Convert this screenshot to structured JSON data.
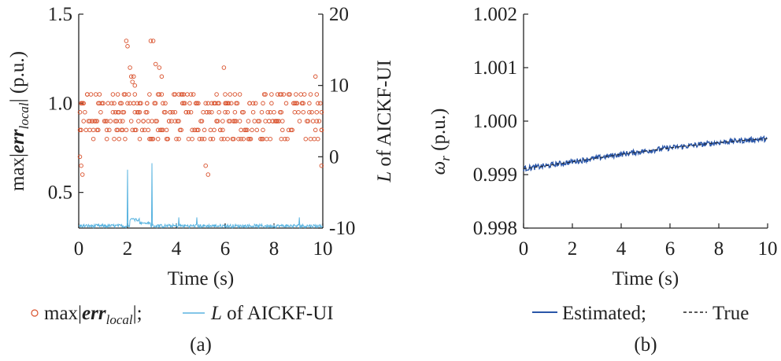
{
  "chart_data": [
    {
      "panel": "(a)",
      "type": "scatter",
      "xlabel": "Time (s)",
      "ylabel_left": {
        "prefix": "max|",
        "bold": "err",
        "sub": "local",
        "suffix": "| (p.u.)"
      },
      "ylabel_right": {
        "italic": "L",
        "rest": " of AICKF-UI"
      },
      "xlim": [
        0,
        10
      ],
      "ylim_left": [
        0.3,
        1.5
      ],
      "ylim_right": [
        -10,
        20
      ],
      "xticks": [
        "0",
        "2",
        "4",
        "6",
        "8",
        "10"
      ],
      "yticks_left": [
        "0.5",
        "1.0",
        "1.5"
      ],
      "yticks_right": [
        "-10",
        "0",
        "10",
        "20"
      ],
      "series": [
        {
          "name": "max|err_local|",
          "kind": "scatter",
          "axis": "left",
          "color": "#d9512c",
          "levels": [
            0.8,
            0.85,
            0.9,
            0.95,
            1.0,
            1.05
          ],
          "extra_points": [
            [
              0.1,
              0.65
            ],
            [
              0.15,
              0.6
            ],
            [
              1.95,
              1.35
            ],
            [
              2.0,
              1.32
            ],
            [
              2.1,
              1.2
            ],
            [
              2.15,
              1.15
            ],
            [
              2.2,
              1.12
            ],
            [
              2.25,
              1.15
            ],
            [
              2.3,
              1.1
            ],
            [
              2.95,
              1.35
            ],
            [
              3.05,
              1.35
            ],
            [
              3.15,
              1.22
            ],
            [
              3.3,
              1.2
            ],
            [
              3.4,
              1.15
            ],
            [
              5.95,
              1.2
            ],
            [
              9.7,
              1.15
            ],
            [
              5.2,
              0.65
            ],
            [
              5.3,
              0.6
            ],
            [
              0.05,
              0.7
            ],
            [
              9.95,
              0.65
            ]
          ]
        },
        {
          "name": "L of AICKF-UI",
          "kind": "line",
          "axis": "right",
          "color": "#5ab4e0",
          "baseline": -9.7,
          "peaks": [
            [
              2.0,
              -1.8
            ],
            [
              3.0,
              -0.9
            ],
            [
              2.15,
              -8.7
            ],
            [
              2.3,
              -9.0
            ]
          ]
        }
      ],
      "legend": {
        "marker_label": {
          "prefix": "max|",
          "bold": "err",
          "sub": "local",
          "suffix": "|;"
        },
        "line_label": {
          "italic": "L",
          "rest": " of AICKF-UI"
        }
      },
      "caption": "(a)"
    },
    {
      "panel": "(b)",
      "type": "line",
      "xlabel": "Time (s)",
      "ylabel": {
        "italic": "ω",
        "sub": "r",
        "suffix": " (p.u.)"
      },
      "xlim": [
        0,
        10
      ],
      "ylim": [
        0.998,
        1.002
      ],
      "xticks": [
        "0",
        "2",
        "4",
        "6",
        "8",
        "10"
      ],
      "yticks": [
        "0.998",
        "0.999",
        "1.000",
        "1.001",
        "1.002"
      ],
      "series": [
        {
          "name": "Estimated",
          "color": "#2a56a8",
          "x": [
            0,
            1,
            2,
            3,
            4,
            5,
            6,
            7,
            8,
            9,
            10
          ],
          "y": [
            0.99911,
            0.99917,
            0.99924,
            0.99931,
            0.99938,
            0.99944,
            0.9995,
            0.99955,
            0.9996,
            0.99964,
            0.99967
          ]
        },
        {
          "name": "True",
          "color": "#222222",
          "dash": true,
          "x": [
            0,
            1,
            2,
            3,
            4,
            5,
            6,
            7,
            8,
            9,
            10
          ],
          "y": [
            0.99911,
            0.99917,
            0.99924,
            0.99931,
            0.99938,
            0.99944,
            0.9995,
            0.99955,
            0.9996,
            0.99964,
            0.99967
          ]
        }
      ],
      "legend": {
        "estimated_label": "Estimated;",
        "true_label": "True"
      },
      "caption": "(b)"
    }
  ]
}
